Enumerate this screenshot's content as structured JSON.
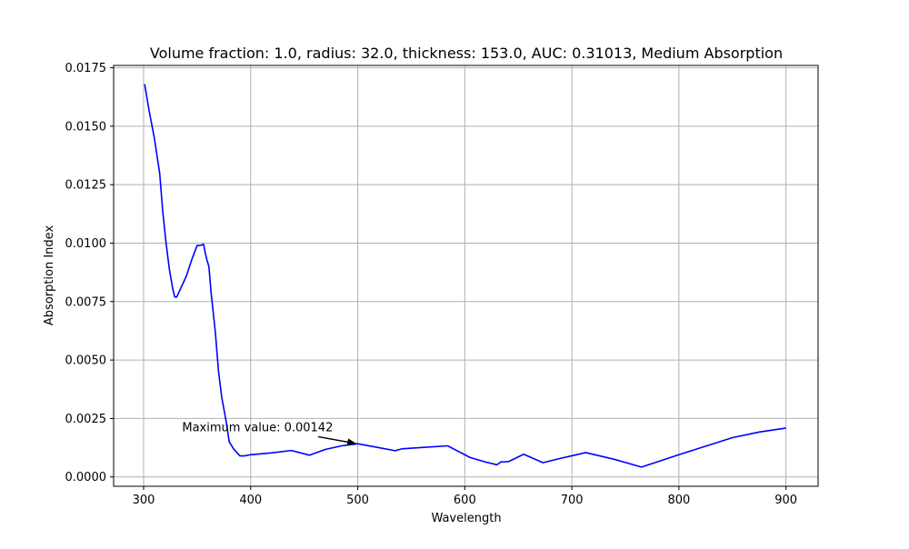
{
  "chart_data": {
    "type": "line",
    "title": "Volume fraction: 1.0, radius: 32.0, thickness: 153.0, AUC: 0.31013, Medium Absorption",
    "xlabel": "Wavelength",
    "ylabel": "Absorption Index",
    "xlim": [
      272,
      930
    ],
    "ylim": [
      -0.0004,
      0.0176
    ],
    "grid": true,
    "x_ticks": [
      300,
      400,
      500,
      600,
      700,
      800,
      900
    ],
    "y_ticks": [
      0.0,
      0.0025,
      0.005,
      0.0075,
      0.01,
      0.0125,
      0.015,
      0.0175
    ],
    "x_tick_labels": [
      "300",
      "400",
      "500",
      "600",
      "700",
      "800",
      "900"
    ],
    "y_tick_labels": [
      "0.0000",
      "0.0025",
      "0.0050",
      "0.0075",
      "0.0100",
      "0.0125",
      "0.0150",
      "0.0175"
    ],
    "series": [
      {
        "color": "#0000ff",
        "x": [
          301,
          305,
          310,
          315,
          318,
          321,
          324,
          327,
          329,
          331,
          334,
          337,
          340,
          345,
          350,
          353,
          356,
          358,
          359,
          361,
          363,
          367,
          370,
          373,
          377,
          380,
          384,
          390,
          394,
          400,
          420,
          438,
          455,
          470,
          485,
          500,
          520,
          535,
          541,
          560,
          584,
          605,
          620,
          630,
          634,
          637,
          641,
          655,
          673,
          690,
          713,
          740,
          765,
          800,
          850,
          875,
          900
        ],
        "y": [
          0.0168,
          0.0157,
          0.0145,
          0.013,
          0.0113,
          0.01,
          0.0089,
          0.0081,
          0.0077,
          0.0077,
          0.008,
          0.0083,
          0.0086,
          0.0093,
          0.0099,
          0.0099,
          0.00995,
          0.0095,
          0.0093,
          0.009,
          0.0079,
          0.0062,
          0.0045,
          0.0034,
          0.0024,
          0.0015,
          0.0012,
          0.0009,
          0.0009,
          0.00095,
          0.00103,
          0.00113,
          0.00093,
          0.00118,
          0.00133,
          0.00142,
          0.00125,
          0.00112,
          0.0012,
          0.00126,
          0.00133,
          0.00083,
          0.00063,
          0.00052,
          0.00065,
          0.00064,
          0.00066,
          0.00097,
          0.00061,
          0.0008,
          0.00104,
          0.00075,
          0.00042,
          0.00095,
          0.00168,
          0.00192,
          0.00209
        ]
      }
    ],
    "annotations": [
      {
        "text": "Maximum value: 0.00142",
        "text_x": 336,
        "text_y": 0.00195,
        "arrow_from": [
          463,
          0.00172
        ],
        "arrow_to": [
          498,
          0.00143
        ]
      }
    ]
  }
}
